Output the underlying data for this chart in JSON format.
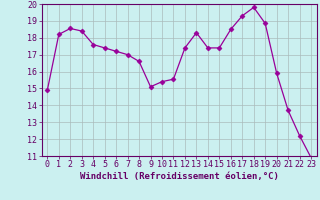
{
  "x": [
    0,
    1,
    2,
    3,
    4,
    5,
    6,
    7,
    8,
    9,
    10,
    11,
    12,
    13,
    14,
    15,
    16,
    17,
    18,
    19,
    20,
    21,
    22,
    23
  ],
  "y": [
    14.9,
    18.2,
    18.55,
    18.4,
    17.6,
    17.4,
    17.2,
    17.0,
    16.6,
    15.1,
    15.4,
    15.55,
    17.4,
    18.3,
    17.4,
    17.4,
    18.5,
    19.3,
    19.8,
    18.85,
    15.9,
    13.7,
    12.2,
    10.9
  ],
  "line_color": "#990099",
  "marker": "D",
  "marker_size": 2.5,
  "bg_color": "#cbf0f0",
  "grid_color": "#aabbbb",
  "xlabel": "Windchill (Refroidissement éolien,°C)",
  "ylim": [
    11,
    20
  ],
  "xlim": [
    -0.5,
    23.5
  ],
  "yticks": [
    11,
    12,
    13,
    14,
    15,
    16,
    17,
    18,
    19,
    20
  ],
  "xticks": [
    0,
    1,
    2,
    3,
    4,
    5,
    6,
    7,
    8,
    9,
    10,
    11,
    12,
    13,
    14,
    15,
    16,
    17,
    18,
    19,
    20,
    21,
    22,
    23
  ],
  "xlabel_fontsize": 6.5,
  "tick_fontsize": 6.0,
  "xlabel_color": "#660066",
  "tick_color": "#660066",
  "spine_color": "#660066",
  "linewidth": 0.9
}
